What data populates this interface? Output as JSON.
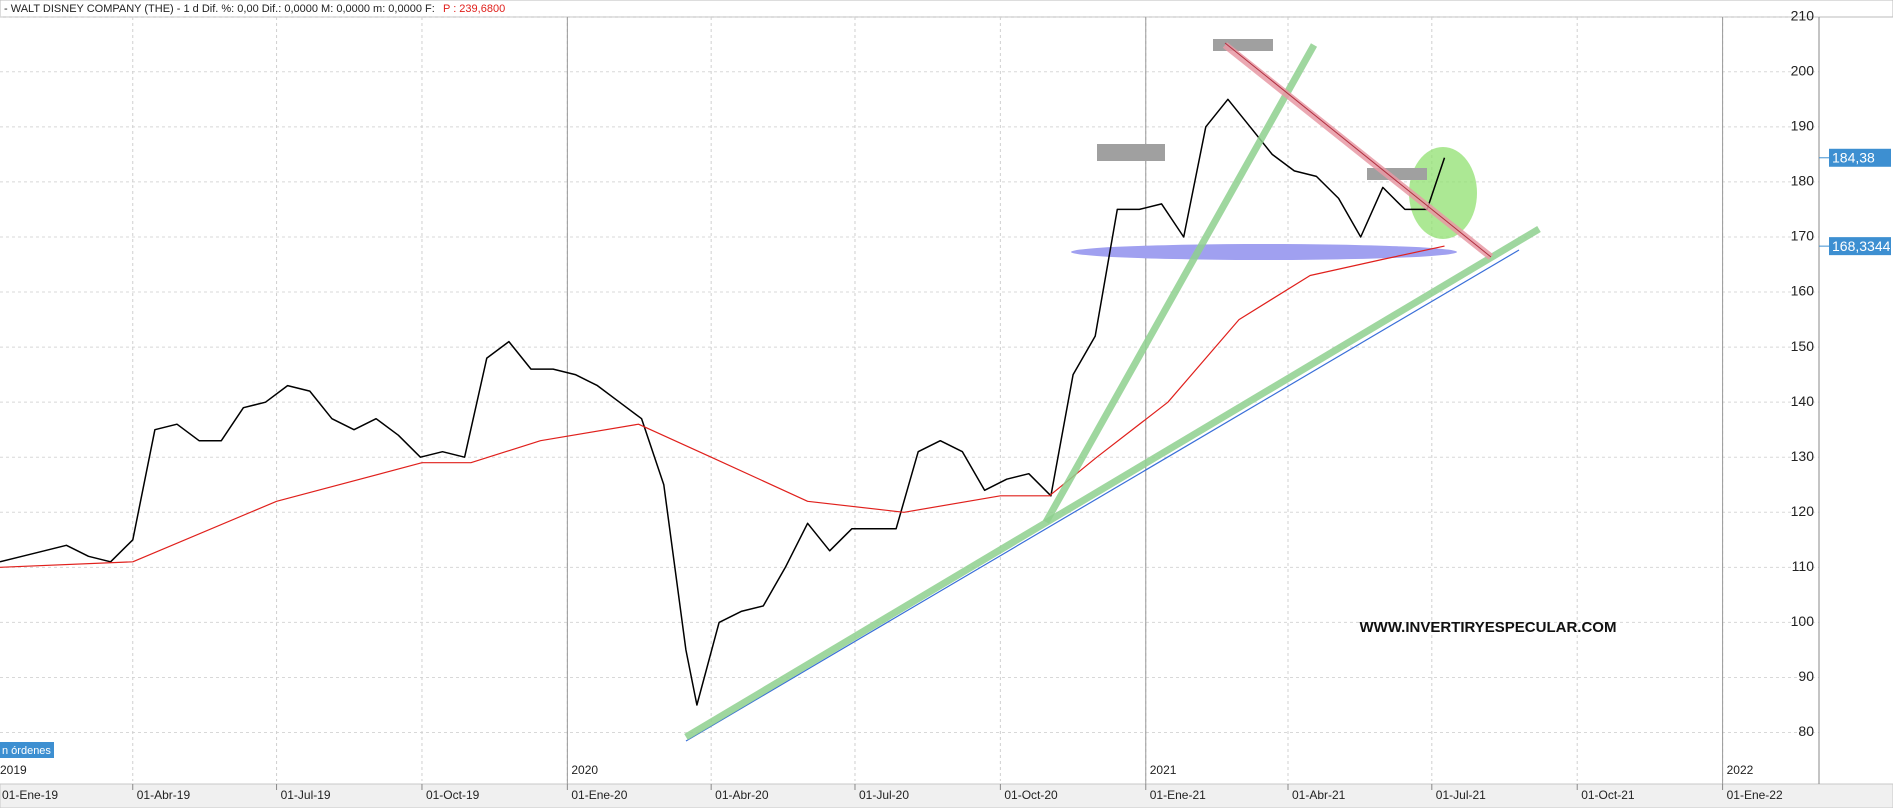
{
  "chart_data": {
    "type": "line",
    "title": "- WALT DISNEY COMPANY (THE) -   1 d  Dif. %: 0,00  Dif.: 0,0000  M: 0,0000  m: 0,0000  F:",
    "title_price": "P : 239,6800",
    "watermark": "WWW.INVERTIRYESPECULAR.COM",
    "orders_label": "n órdenes",
    "xlim": [
      "2019-01-07",
      "2022-03-03"
    ],
    "ylim": [
      71.2,
      210.4
    ],
    "yticks": [
      80,
      90,
      100,
      110,
      120,
      130,
      140,
      150,
      160,
      170,
      180,
      190,
      200,
      210
    ],
    "grid": true,
    "xticks": [
      {
        "value": "2019-01-01",
        "label": "01-Ene-19"
      },
      {
        "value": "2019-04-01",
        "label": "01-Abr-19"
      },
      {
        "value": "2019-07-01",
        "label": "01-Jul-19"
      },
      {
        "value": "2019-10-01",
        "label": "01-Oct-19"
      },
      {
        "value": "2020-01-01",
        "label": "01-Ene-20"
      },
      {
        "value": "2020-04-01",
        "label": "01-Abr-20"
      },
      {
        "value": "2020-07-01",
        "label": "01-Jul-20"
      },
      {
        "value": "2020-10-01",
        "label": "01-Oct-20"
      },
      {
        "value": "2021-01-01",
        "label": "01-Ene-21"
      },
      {
        "value": "2021-04-01",
        "label": "01-Abr-21"
      },
      {
        "value": "2021-07-01",
        "label": "01-Jul-21"
      },
      {
        "value": "2021-10-01",
        "label": "01-Oct-21"
      },
      {
        "value": "2022-01-01",
        "label": "01-Ene-22"
      }
    ],
    "year_labels": [
      {
        "value": "2019-01-01",
        "label": "2019"
      },
      {
        "value": "2020-01-01",
        "label": "2020"
      },
      {
        "value": "2021-01-01",
        "label": "2021"
      },
      {
        "value": "2022-01-01",
        "label": "2022"
      }
    ],
    "last_price_labels": [
      {
        "value": 184.38,
        "label": "184,38"
      },
      {
        "value": 168.3344,
        "label": "168,3344"
      }
    ],
    "series": [
      {
        "color": "#000000",
        "x": [
          "2019-01-07",
          "2019-01-21",
          "2019-02-04",
          "2019-02-18",
          "2019-03-04",
          "2019-03-18",
          "2019-04-01",
          "2019-04-15",
          "2019-04-29",
          "2019-05-13",
          "2019-05-27",
          "2019-06-10",
          "2019-06-24",
          "2019-07-08",
          "2019-07-22",
          "2019-08-05",
          "2019-08-19",
          "2019-09-02",
          "2019-09-16",
          "2019-09-30",
          "2019-10-14",
          "2019-10-28",
          "2019-11-11",
          "2019-11-25",
          "2019-12-09",
          "2019-12-23",
          "2020-01-06",
          "2020-01-20",
          "2020-02-03",
          "2020-02-17",
          "2020-03-02",
          "2020-03-16",
          "2020-03-23",
          "2020-04-06",
          "2020-04-20",
          "2020-05-04",
          "2020-05-18",
          "2020-06-01",
          "2020-06-15",
          "2020-06-29",
          "2020-07-13",
          "2020-07-27",
          "2020-08-10",
          "2020-08-24",
          "2020-09-07",
          "2020-09-21",
          "2020-10-05",
          "2020-10-19",
          "2020-11-02",
          "2020-11-16",
          "2020-11-30",
          "2020-12-14",
          "2020-12-28",
          "2021-01-11",
          "2021-01-25",
          "2021-02-08",
          "2021-02-22",
          "2021-03-08",
          "2021-03-22",
          "2021-04-05",
          "2021-04-19",
          "2021-05-03",
          "2021-05-17",
          "2021-05-31",
          "2021-06-14",
          "2021-06-28",
          "2021-07-09"
        ],
        "values": [
          111,
          112,
          113,
          114,
          112,
          111,
          115,
          135,
          136,
          133,
          133,
          139,
          140,
          143,
          142,
          137,
          135,
          137,
          134,
          130,
          131,
          130,
          148,
          151,
          146,
          146,
          145,
          143,
          140,
          137,
          125,
          95,
          85,
          100,
          102,
          103,
          110,
          118,
          113,
          117,
          117,
          117,
          131,
          133,
          131,
          124,
          126,
          127,
          123,
          145,
          152,
          175,
          175,
          176,
          170,
          190,
          195,
          190,
          185,
          182,
          181,
          177,
          170,
          179,
          175,
          175,
          184.38
        ]
      },
      {
        "color": "#e0201c",
        "x": [
          "2019-01-07",
          "2019-04-01",
          "2019-07-01",
          "2019-10-01",
          "2019-11-01",
          "2019-12-15",
          "2020-02-15",
          "2020-04-01",
          "2020-06-01",
          "2020-08-01",
          "2020-10-01",
          "2020-11-01",
          "2020-12-01",
          "2021-01-15",
          "2021-03-01",
          "2021-04-15",
          "2021-06-01",
          "2021-07-09"
        ],
        "values": [
          110,
          111,
          122,
          129,
          129,
          133,
          136,
          130,
          122,
          120,
          123,
          123,
          130,
          140,
          155,
          163,
          166,
          168.3344
        ]
      }
    ]
  }
}
